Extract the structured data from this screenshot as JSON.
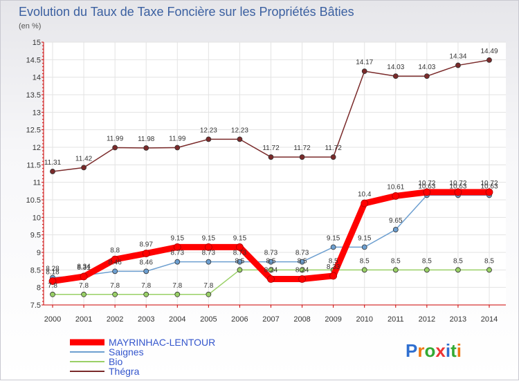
{
  "chart_data": {
    "type": "line",
    "title": "Evolution du Taux de Taxe Foncière sur les Propriétés Bâties",
    "subtitle": "(en %)",
    "x": [
      "2000",
      "2001",
      "2002",
      "2003",
      "2004",
      "2005",
      "2006",
      "2007",
      "2008",
      "2009",
      "2010",
      "2011",
      "2012",
      "2013",
      "2014"
    ],
    "ylim": [
      7.5,
      15
    ],
    "yticks": [
      "7.5",
      "8",
      "8.5",
      "9",
      "9.5",
      "10",
      "10.5",
      "11",
      "11.5",
      "12",
      "12.5",
      "13",
      "13.5",
      "14",
      "14.5",
      "15"
    ],
    "legend_position": "bottom-left",
    "series": [
      {
        "name": "Thégra",
        "color": "#7a2a2a",
        "values": [
          11.31,
          11.42,
          11.99,
          11.98,
          11.99,
          12.23,
          12.23,
          11.72,
          11.72,
          11.72,
          14.17,
          14.03,
          14.03,
          14.34,
          14.49
        ],
        "labels": [
          "11.31",
          "11.42",
          "11.99",
          "11.98",
          "11.99",
          "12.23",
          "12.23",
          "11.72",
          "11.72",
          "11.72",
          "14.17",
          "14.03",
          "14.03",
          "14.34",
          "14.49"
        ]
      },
      {
        "name": "Bio",
        "color": "#99d066",
        "values": [
          7.8,
          7.8,
          7.8,
          7.8,
          7.8,
          7.8,
          8.5,
          8.5,
          8.5,
          8.5,
          8.5,
          8.5,
          8.5,
          8.5,
          8.5
        ],
        "labels": [
          "7.8",
          "7.8",
          "7.8",
          "7.8",
          "7.8",
          "7.8",
          "8.5",
          "8.5",
          "8.5",
          "8.5",
          "8.5",
          "8.5",
          "8.5",
          "8.5",
          "8.5"
        ]
      },
      {
        "name": "Saignes",
        "color": "#6d9fd0",
        "values": [
          8.28,
          8.34,
          8.46,
          8.46,
          8.73,
          8.73,
          8.73,
          8.73,
          8.73,
          9.15,
          9.15,
          9.65,
          10.63,
          10.63,
          10.63
        ],
        "labels": [
          "8.28",
          "8.34",
          "8.46",
          "8.46",
          "8.73",
          "8.73",
          "8.73",
          "8.73",
          "8.73",
          "9.15",
          "9.15",
          "9.65",
          "10.63",
          "10.63",
          "10.63"
        ]
      },
      {
        "name": "MAYRINHAC-LENTOUR",
        "color": "#ff0000",
        "values": [
          8.18,
          8.31,
          8.8,
          8.97,
          9.15,
          9.15,
          9.15,
          8.24,
          8.24,
          8.33,
          10.4,
          10.61,
          10.72,
          10.72,
          10.72
        ],
        "labels": [
          "8.18",
          "8.31",
          "8.8",
          "8.97",
          "9.15",
          "9.15",
          "9.15",
          "8.24",
          "8.24",
          "8.33",
          "10.4",
          "10.61",
          "10.72",
          "10.72",
          "10.72"
        ]
      }
    ],
    "legend": [
      {
        "name": "MAYRINHAC-LENTOUR",
        "color": "#ff0000",
        "text_color": "#3355cc"
      },
      {
        "name": "Saignes",
        "color": "#6d9fd0",
        "text_color": "#3355cc"
      },
      {
        "name": "Bio",
        "color": "#99d066",
        "text_color": "#3355cc"
      },
      {
        "name": "Thégra",
        "color": "#7a2a2a",
        "text_color": "#3355cc"
      }
    ]
  },
  "brand": {
    "logo_text": "Proxiti"
  }
}
